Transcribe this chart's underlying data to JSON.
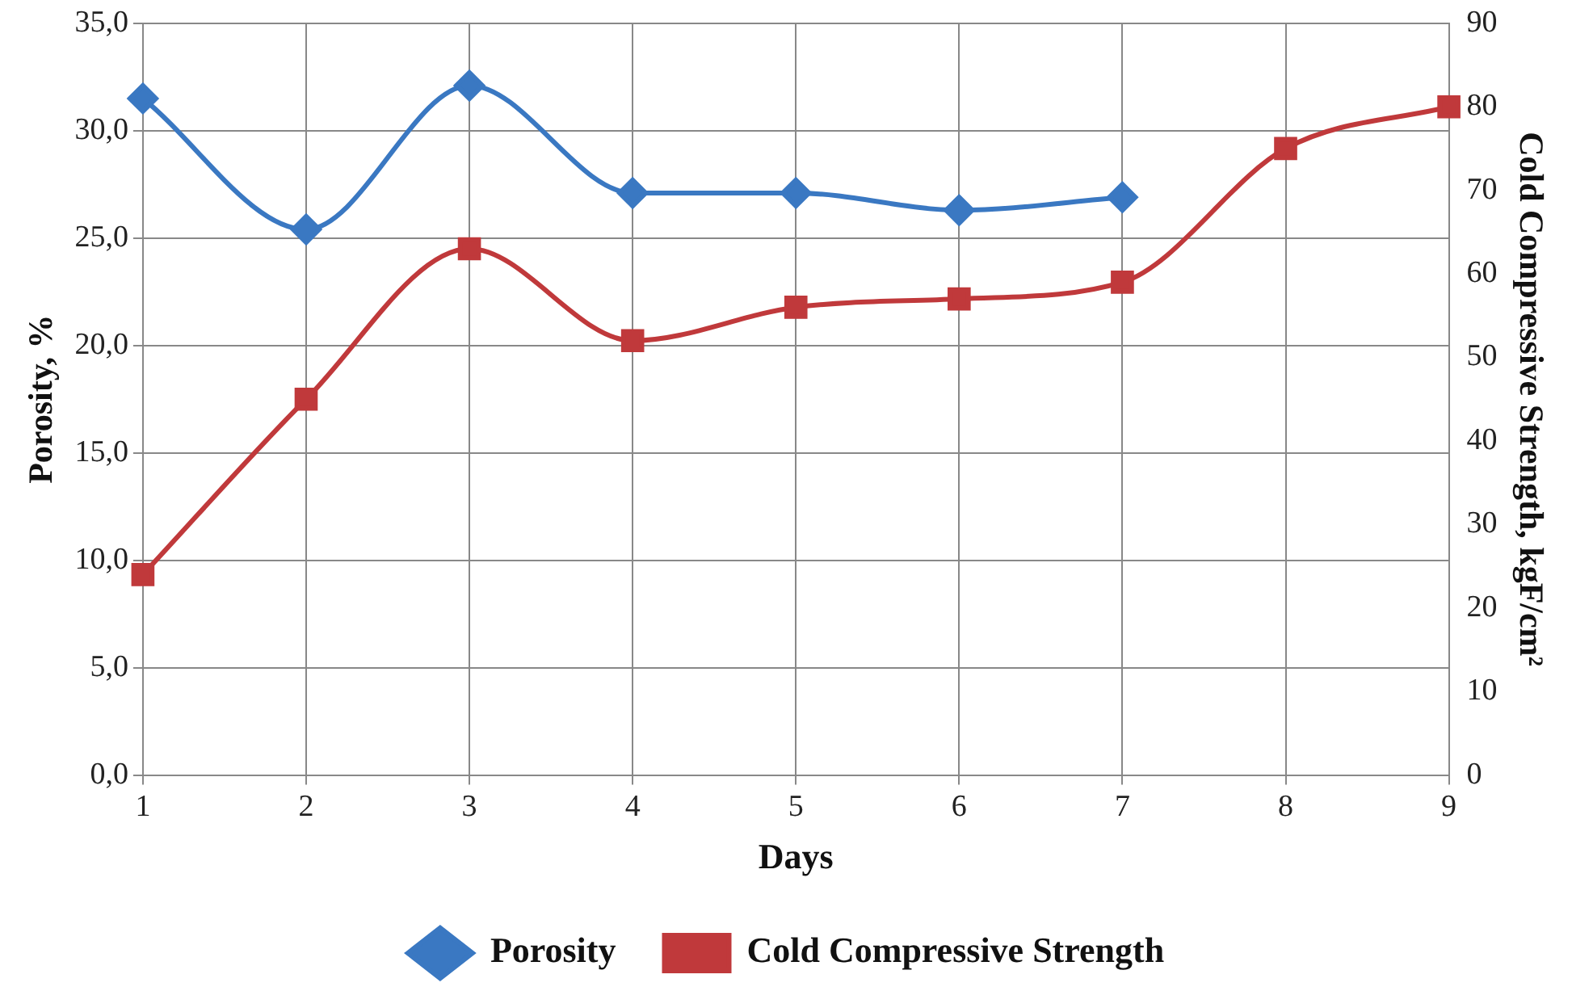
{
  "chart_data": {
    "type": "line",
    "xlabel": "Days",
    "ylabel": "Porosity, %",
    "y2label": "Cold Compressive Strength, kgF/cm²",
    "categories": [
      "1",
      "2",
      "3",
      "4",
      "5",
      "6",
      "7",
      "8",
      "9"
    ],
    "series": [
      {
        "name": "Porosity",
        "color": "#3a78c2",
        "marker": "diamond",
        "values": [
          31.5,
          25.4,
          32.1,
          27.1,
          27.1,
          26.3,
          26.9,
          null,
          null
        ]
      },
      {
        "name": "Cold Compressive Strength",
        "color": "#c0393b",
        "marker": "square",
        "axis": "y2",
        "values": [
          24,
          45,
          63,
          52,
          56,
          57,
          59,
          75,
          80
        ]
      }
    ],
    "ylim": [
      0,
      35
    ],
    "yticks": [
      {
        "value": 0,
        "label": "0,0"
      },
      {
        "value": 5,
        "label": "5,0"
      },
      {
        "value": 10,
        "label": "10,0"
      },
      {
        "value": 15,
        "label": "15,0"
      },
      {
        "value": 20,
        "label": "20,0"
      },
      {
        "value": 25,
        "label": "25,0"
      },
      {
        "value": 30,
        "label": "30,0"
      },
      {
        "value": 35,
        "label": "35,0"
      }
    ],
    "y2lim": [
      0,
      90
    ],
    "y2ticks": [
      0,
      10,
      20,
      30,
      40,
      50,
      60,
      70,
      80,
      90
    ],
    "grid": true,
    "legend": "bottom",
    "line_style": "solid"
  }
}
